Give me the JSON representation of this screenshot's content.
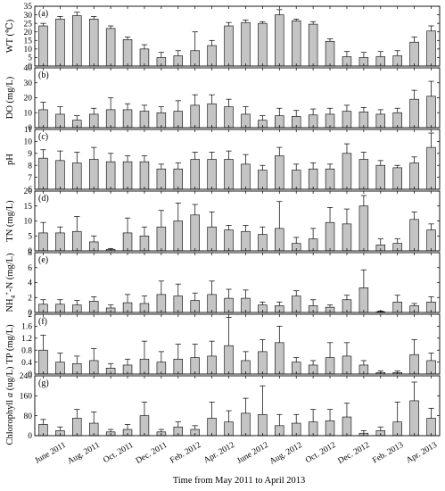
{
  "chart_data": {
    "type": "bar",
    "xlabel": "Time from May 2011 to April 2013",
    "x_tick_labels": [
      {
        "index": 1,
        "label": "June 2011"
      },
      {
        "index": 3,
        "label": "Aug. 2011"
      },
      {
        "index": 5,
        "label": "Oct. 2011"
      },
      {
        "index": 7,
        "label": "Dec. 2011"
      },
      {
        "index": 9,
        "label": "Feb. 2012"
      },
      {
        "index": 11,
        "label": "Apr. 2012"
      },
      {
        "index": 13,
        "label": "June 2012"
      },
      {
        "index": 15,
        "label": "Aug. 2012"
      },
      {
        "index": 17,
        "label": "Oct. 2012"
      },
      {
        "index": 19,
        "label": "Dec. 2012"
      },
      {
        "index": 21,
        "label": "Feb. 2013"
      },
      {
        "index": 23,
        "label": "Apr. 2013"
      }
    ],
    "panels": [
      {
        "letter": "(a)",
        "ylabel": "WT (℃)",
        "ylim": [
          0,
          35
        ],
        "yticks": [
          0,
          5,
          10,
          15,
          20,
          25,
          30,
          35
        ],
        "values": [
          23.5,
          27.5,
          29.5,
          27.5,
          22,
          15.5,
          10,
          5,
          6,
          9,
          12,
          23.5,
          25.5,
          25,
          30,
          26.5,
          24.5,
          14.5,
          5.5,
          5,
          5.5,
          6,
          14,
          20.5
        ],
        "errors": [
          1.5,
          1.5,
          2,
          1.5,
          1.5,
          1.5,
          2.5,
          3,
          3,
          11,
          3,
          2,
          1.5,
          1,
          3,
          1,
          1.5,
          1.5,
          3,
          3,
          3,
          3,
          3,
          3
        ]
      },
      {
        "letter": "(b)",
        "ylabel": "DO (mg/L)",
        "ylim": [
          0,
          40
        ],
        "yticks": [
          0,
          10,
          20,
          30,
          40
        ],
        "values": [
          12,
          9,
          5,
          9,
          12,
          12,
          11,
          10,
          11,
          15,
          16,
          14,
          9,
          5,
          8,
          7.5,
          8.5,
          9,
          11,
          10.5,
          9,
          10,
          19,
          21
        ],
        "errors": [
          5,
          5,
          3,
          4,
          8,
          4,
          4,
          4,
          7,
          7,
          6,
          5,
          5,
          3,
          5,
          4,
          4,
          4,
          4,
          3,
          3,
          3,
          6,
          10
        ]
      },
      {
        "letter": "(c)",
        "ylabel": "pH",
        "ylim": [
          6,
          11
        ],
        "yticks": [
          6,
          7,
          8,
          9,
          10,
          11
        ],
        "values": [
          8.6,
          8.4,
          8.2,
          8.5,
          8.3,
          8.3,
          8.3,
          7.7,
          7.7,
          8.5,
          8.5,
          8.5,
          8.1,
          7.6,
          8.8,
          7.6,
          7.7,
          7.7,
          9.0,
          8.5,
          8.0,
          7.8,
          8.2,
          9.5
        ],
        "errors": [
          0.7,
          0.8,
          0.9,
          1.0,
          0.7,
          0.5,
          0.5,
          0.4,
          0.5,
          0.6,
          0.6,
          0.7,
          0.8,
          0.4,
          0.7,
          0.5,
          0.5,
          0.4,
          0.8,
          0.6,
          0.4,
          0.2,
          0.5,
          1.2
        ]
      },
      {
        "letter": "(d)",
        "ylabel": "TN (mg/L)",
        "ylim": [
          0,
          20
        ],
        "yticks": [
          0,
          5,
          10,
          15,
          20
        ],
        "values": [
          6,
          6,
          6.5,
          3,
          0.5,
          6,
          5,
          8,
          10,
          12,
          8,
          7,
          6.5,
          5.5,
          7.5,
          2.5,
          4,
          9.5,
          9,
          15,
          2,
          2.5,
          10.5,
          7
        ],
        "errors": [
          3.5,
          2,
          5,
          2,
          0.3,
          5,
          3,
          5.5,
          6,
          3.5,
          5,
          1.5,
          2,
          2.5,
          9,
          2,
          3.5,
          5,
          5,
          3.5,
          2,
          1.5,
          2.5,
          2
        ]
      },
      {
        "letter": "(e)",
        "ylabel": "NH4+-N (mg/L)",
        "ylim": [
          0,
          8
        ],
        "yticks": [
          0,
          2,
          4,
          6,
          8
        ],
        "values": [
          1.1,
          1.1,
          1.0,
          1.5,
          0.6,
          1.3,
          1.2,
          2.4,
          2.2,
          1.6,
          2.4,
          1.9,
          1.9,
          1.0,
          0.9,
          2.2,
          0.9,
          0.7,
          1.7,
          3.3,
          0.1,
          1.4,
          0.9,
          1.4
        ],
        "errors": [
          0.6,
          0.6,
          0.6,
          0.6,
          0.4,
          1.1,
          1.0,
          1.8,
          1.6,
          1.0,
          1.8,
          1.2,
          1.1,
          0.4,
          0.5,
          0.7,
          0.8,
          0.3,
          0.6,
          2.4,
          0.1,
          0.9,
          0.3,
          0.7
        ]
      },
      {
        "letter": "(f)",
        "ylabel": "TP (mg/L)",
        "ylim": [
          0,
          2.0
        ],
        "yticks": [
          0,
          0.4,
          0.8,
          1.2,
          1.6,
          2.0
        ],
        "values": [
          0.8,
          0.4,
          0.35,
          0.45,
          0.2,
          0.3,
          0.5,
          0.4,
          0.5,
          0.55,
          0.6,
          0.95,
          0.45,
          0.75,
          1.05,
          0.4,
          0.3,
          0.55,
          0.6,
          0.3,
          0.05,
          0.05,
          0.65,
          0.45
        ],
        "errors": [
          0.5,
          0.3,
          0.25,
          0.4,
          0.15,
          0.2,
          0.6,
          0.35,
          0.5,
          0.45,
          0.5,
          0.95,
          0.3,
          0.4,
          0.55,
          0.15,
          0.15,
          0.5,
          0.45,
          0.15,
          0.05,
          0.05,
          0.5,
          0.25
        ]
      },
      {
        "letter": "(g)",
        "ylabel": "Chlorophyll a (ug/L)",
        "ylim": [
          0,
          240
        ],
        "yticks": [
          0,
          80,
          160,
          240
        ],
        "values": [
          45,
          20,
          70,
          50,
          15,
          25,
          80,
          15,
          35,
          25,
          70,
          55,
          90,
          85,
          40,
          50,
          55,
          60,
          75,
          10,
          20,
          55,
          140,
          70
        ],
        "errors": [
          20,
          15,
          35,
          45,
          10,
          20,
          55,
          10,
          20,
          15,
          65,
          45,
          60,
          115,
          45,
          35,
          50,
          45,
          55,
          10,
          15,
          80,
          75,
          40
        ]
      }
    ]
  }
}
